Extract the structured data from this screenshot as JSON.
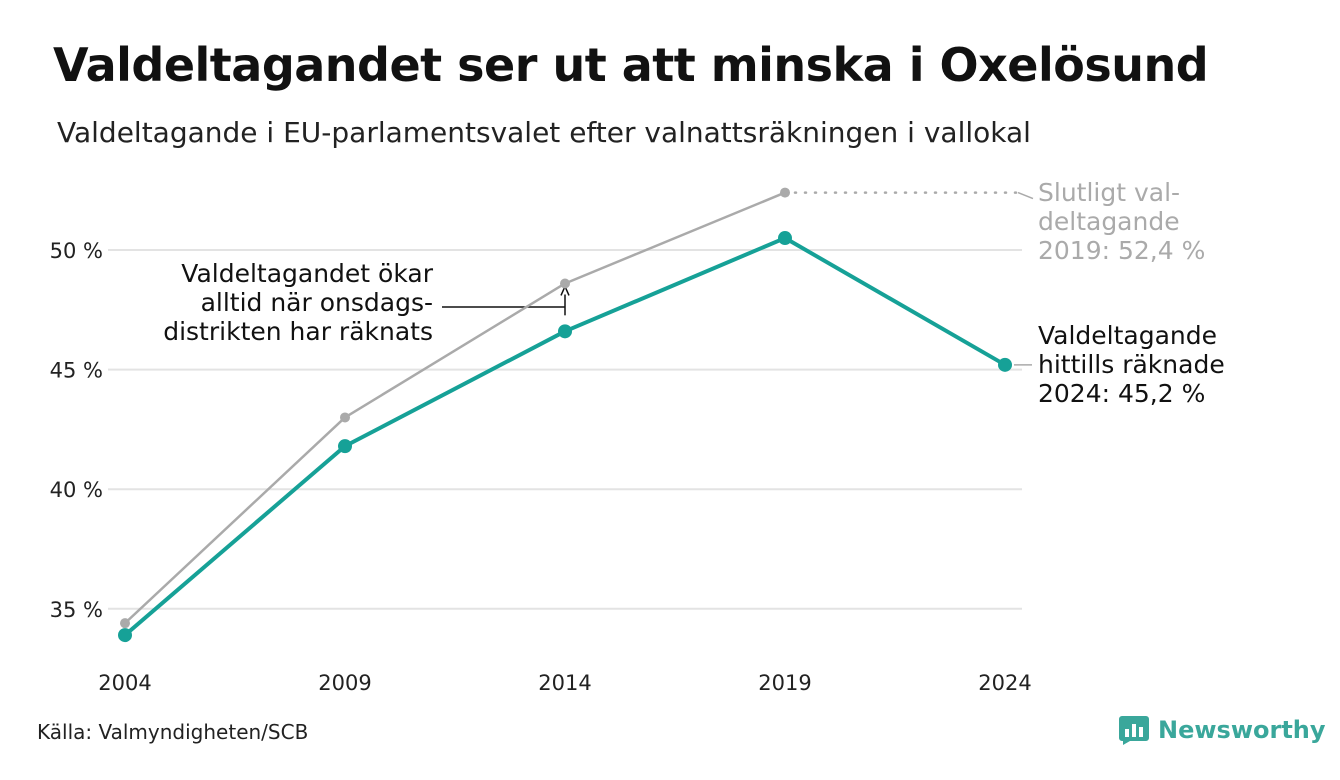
{
  "header": {
    "title": "Valdeltagandet ser ut att minska i Oxelösund",
    "subtitle": "Valdeltagande i EU-parlamentsvalet efter valnattsräkningen i vallokal"
  },
  "chart_data": {
    "type": "line",
    "categories": [
      "2004",
      "2009",
      "2014",
      "2019",
      "2024"
    ],
    "series": [
      {
        "name": "Valdeltagande hittills räknade",
        "color": "#16a197",
        "values": [
          33.9,
          41.8,
          46.6,
          50.5,
          45.2
        ]
      },
      {
        "name": "Slutligt valdeltagande",
        "color": "#aaaaaa",
        "values": [
          34.4,
          43.0,
          48.6,
          52.4,
          null
        ]
      }
    ],
    "ylim": [
      33,
      53
    ],
    "yticks": [
      35,
      40,
      45,
      50
    ],
    "ytick_labels": [
      "35 %",
      "40 %",
      "45 %",
      "50 %"
    ],
    "grid": true,
    "annotations": {
      "final_label": [
        "Slutligt val-",
        "deltagande",
        "2019: 52,4 %"
      ],
      "current_label": [
        "Valdeltagande",
        "hittills räknade",
        "2024: 45,2 %"
      ],
      "note": [
        "Valdeltagandet ökar",
        "alltid när onsdags-",
        "distrikten har räknats"
      ]
    }
  },
  "footer": {
    "source": "Källa: Valmyndigheten/SCB",
    "brand": "Newsworthy",
    "brand_icon": "newsworthy-logo-icon"
  }
}
